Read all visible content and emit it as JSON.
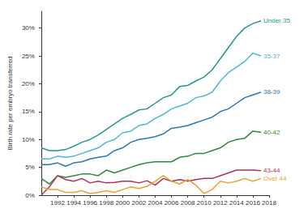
{
  "chart_data": {
    "type": "line",
    "y_label": "Birth rate per embryo transferred",
    "x": [
      1990,
      1991,
      1992,
      1993,
      1994,
      1995,
      1996,
      1997,
      1998,
      1999,
      2000,
      2001,
      2002,
      2003,
      2004,
      2005,
      2006,
      2007,
      2008,
      2009,
      2010,
      2011,
      2012,
      2013,
      2014,
      2015,
      2016,
      2017
    ],
    "series": [
      {
        "name": "Under 35",
        "color": "#23998f",
        "values": [
          8.5,
          8,
          8,
          8.2,
          8.8,
          9.5,
          10,
          10.8,
          11.8,
          12.8,
          13.8,
          14.5,
          15.3,
          15.5,
          16.5,
          17.5,
          18,
          19.5,
          19.7,
          20.5,
          21.2,
          22.5,
          24.5,
          26.5,
          28.5,
          30,
          30.8,
          31.3
        ]
      },
      {
        "name": "35-37",
        "color": "#4cb8d8",
        "values": [
          6.5,
          6.5,
          7,
          6.8,
          7,
          7.5,
          8,
          8.5,
          9.5,
          10,
          11.2,
          11.5,
          12.5,
          12.8,
          13.8,
          14.5,
          15.5,
          16,
          16.5,
          17.5,
          17.8,
          18.5,
          20.5,
          22,
          23,
          24,
          25.5,
          25
        ]
      },
      {
        "name": "38-39",
        "color": "#2a78b8",
        "values": [
          5.5,
          5.5,
          5.8,
          5.2,
          5.8,
          6,
          6.5,
          6.8,
          7,
          8,
          8.5,
          9.5,
          10,
          10.2,
          10.5,
          11,
          12,
          12.2,
          12.5,
          13,
          13.5,
          14,
          15,
          15.5,
          16.5,
          17.5,
          18,
          18.5
        ]
      },
      {
        "name": "40-42",
        "color": "#2e8a3c",
        "values": [
          3,
          2,
          3.5,
          3.2,
          3.5,
          3.8,
          3.8,
          3.5,
          4.5,
          4,
          4.5,
          5,
          5.5,
          5.8,
          6,
          6,
          6,
          6.8,
          7,
          7.5,
          7.5,
          8,
          8.5,
          9.5,
          10,
          10.2,
          11.5,
          11.3
        ]
      },
      {
        "name": "43-44",
        "color": "#b3305a",
        "values": [
          0,
          1.5,
          3.5,
          2.8,
          2.5,
          3,
          2.2,
          2.5,
          2.2,
          2.3,
          2.5,
          2.5,
          2.2,
          2.6,
          1.8,
          3,
          2.5,
          2.8,
          2.5,
          2.8,
          3,
          3,
          3.5,
          4,
          4.5,
          4.5,
          4.5,
          4.4
        ]
      },
      {
        "name": "Over 44",
        "color": "#f0a030",
        "values": [
          1.5,
          1,
          1,
          0.5,
          0.5,
          0.8,
          0.3,
          0.5,
          0.8,
          0.5,
          1,
          1.5,
          1.2,
          1.6,
          2.5,
          3.5,
          2.5,
          2,
          2.8,
          1.8,
          0.3,
          1,
          2.5,
          2.2,
          2.5,
          3,
          2.5,
          3.0
        ]
      }
    ],
    "xlim": [
      1990,
      2018
    ],
    "xticks": [
      1992,
      1994,
      1996,
      1998,
      2000,
      2002,
      2004,
      2006,
      2008,
      2010,
      2012,
      2014,
      2016,
      2018
    ],
    "ylim": [
      0,
      33
    ],
    "yticks": [
      {
        "value": 0,
        "label": "0%"
      },
      {
        "value": 5,
        "label": "5%"
      },
      {
        "value": 10,
        "label": "10%"
      },
      {
        "value": 15,
        "label": "15%"
      },
      {
        "value": 20,
        "label": "20%"
      },
      {
        "value": 25,
        "label": "25%"
      },
      {
        "value": 30,
        "label": "30%"
      }
    ],
    "grid": false
  }
}
